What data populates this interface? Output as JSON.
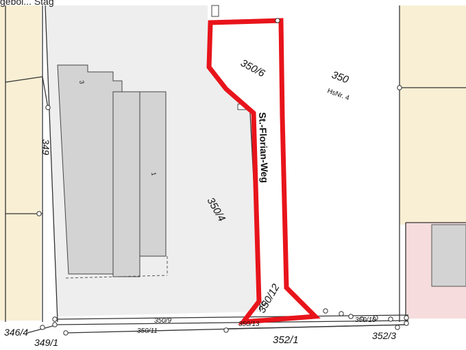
{
  "header": {
    "partial_text": "geboi... Stag"
  },
  "parcels": {
    "p350_6": "350/6",
    "p350": "350",
    "hsnr": "HsNr. 4",
    "p349": "349",
    "p350_4": "350/4",
    "p350_12": "350/12",
    "p350_9": "350/9",
    "p350_13": "350/13",
    "p350_10": "350/10",
    "p350_11": "350/11",
    "p352_1": "352/1",
    "p352_3": "352/3",
    "p346_4": "346/4",
    "p349_1": "349/1"
  },
  "street": {
    "name": "St.-Florian-Weg"
  },
  "buildings": {
    "num_3": "3",
    "num_1": "1"
  },
  "colors": {
    "highlight": "#e8141b",
    "neighbor_yellow": "#f8efd4",
    "neighbor_pink": "#f6dcdc",
    "parcel_grey": "#eeeeee",
    "building_grey": "#d3d3d3",
    "line": "#333333"
  }
}
